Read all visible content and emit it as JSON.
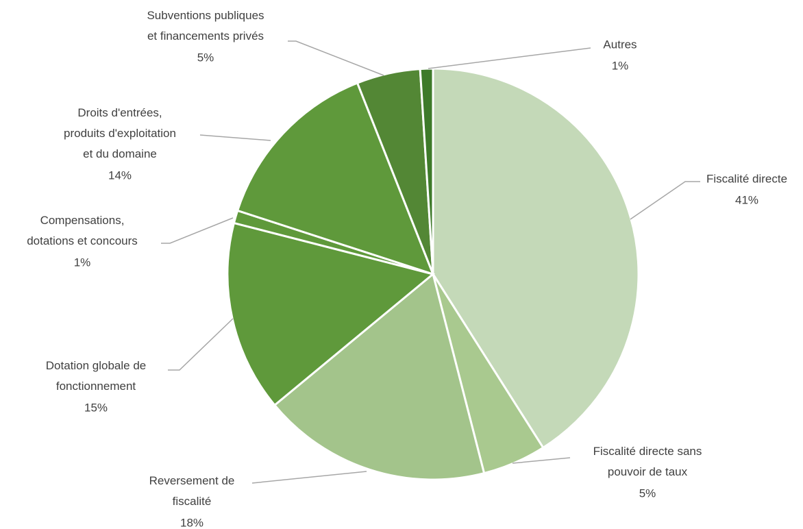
{
  "chart_data": {
    "type": "pie",
    "categories": [
      "Fiscalité directe",
      "Fiscalité directe sans\npouvoir de taux",
      "Reversement de\nfiscalité",
      "Dotation globale de\nfonctionnement",
      "Compensations,\ndotations et concours",
      "Droits d'entrées,\nproduits d'exploitation\net du domaine",
      "Subventions publiques\net financements privés",
      "Autres"
    ],
    "values": [
      41,
      5,
      18,
      15,
      1,
      14,
      5,
      1
    ],
    "value_labels": [
      "41%",
      "5%",
      "18%",
      "15%",
      "1%",
      "14%",
      "5%",
      "1%"
    ],
    "colors": [
      "#c4d9b8",
      "#a9c98f",
      "#a3c48b",
      "#5f993b",
      "#5f993b",
      "#5f993b",
      "#538735",
      "#3e7a2a"
    ]
  }
}
